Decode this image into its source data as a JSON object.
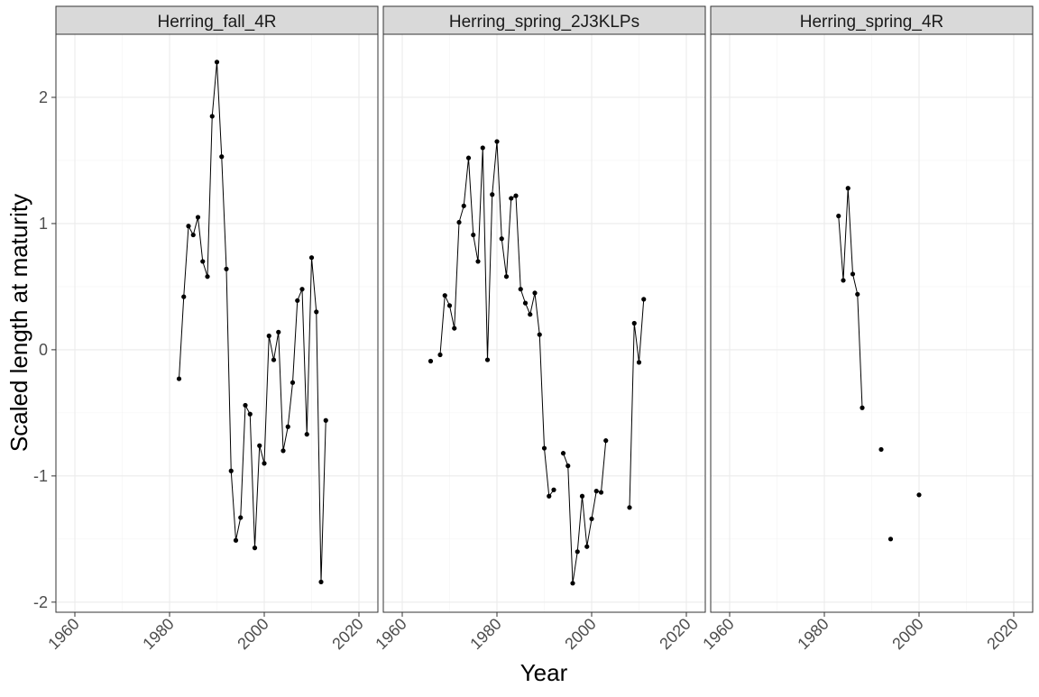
{
  "chart_data": {
    "type": "line",
    "xlabel": "Year",
    "ylabel": "Scaled length at maturity",
    "xlim": [
      1956,
      2024
    ],
    "ylim": [
      -2.08,
      2.5
    ],
    "x_ticks": [
      1960,
      1980,
      2000,
      2020
    ],
    "x_tick_labels": [
      "1960",
      "1980",
      "2000",
      "2020"
    ],
    "y_ticks": [
      -2,
      -1,
      0,
      1,
      2
    ],
    "y_tick_labels": [
      "-2",
      "-1",
      "0",
      "1",
      "2"
    ],
    "grid": true,
    "legend": "none",
    "panels": [
      {
        "title": "Herring_fall_4R",
        "segments": [
          [
            [
              1982,
              -0.23
            ],
            [
              1983,
              0.42
            ],
            [
              1984,
              0.98
            ],
            [
              1985,
              0.91
            ],
            [
              1986,
              1.05
            ],
            [
              1987,
              0.7
            ],
            [
              1988,
              0.58
            ],
            [
              1989,
              1.85
            ],
            [
              1990,
              2.28
            ],
            [
              1991,
              1.53
            ],
            [
              1992,
              0.64
            ],
            [
              1993,
              -0.96
            ],
            [
              1994,
              -1.51
            ],
            [
              1995,
              -1.33
            ],
            [
              1996,
              -0.44
            ],
            [
              1997,
              -0.51
            ],
            [
              1998,
              -1.57
            ],
            [
              1999,
              -0.76
            ],
            [
              2000,
              -0.9
            ],
            [
              2001,
              0.11
            ],
            [
              2002,
              -0.08
            ],
            [
              2003,
              0.14
            ],
            [
              2004,
              -0.8
            ],
            [
              2005,
              -0.61
            ],
            [
              2006,
              -0.26
            ],
            [
              2007,
              0.39
            ],
            [
              2008,
              0.48
            ],
            [
              2009,
              -0.67
            ],
            [
              2010,
              0.73
            ],
            [
              2011,
              0.3
            ],
            [
              2012,
              -1.84
            ],
            [
              2013,
              -0.56
            ]
          ]
        ]
      },
      {
        "title": "Herring_spring_2J3KLPs",
        "segments": [
          [
            [
              1966,
              -0.09
            ]
          ],
          [
            [
              1968,
              -0.04
            ],
            [
              1969,
              0.43
            ],
            [
              1970,
              0.35
            ],
            [
              1971,
              0.17
            ],
            [
              1972,
              1.01
            ],
            [
              1973,
              1.14
            ],
            [
              1974,
              1.52
            ],
            [
              1975,
              0.91
            ],
            [
              1976,
              0.7
            ],
            [
              1977,
              1.6
            ],
            [
              1978,
              -0.08
            ],
            [
              1979,
              1.23
            ],
            [
              1980,
              1.65
            ],
            [
              1981,
              0.88
            ],
            [
              1982,
              0.58
            ],
            [
              1983,
              1.2
            ],
            [
              1984,
              1.22
            ],
            [
              1985,
              0.48
            ],
            [
              1986,
              0.37
            ],
            [
              1987,
              0.28
            ],
            [
              1988,
              0.45
            ],
            [
              1989,
              0.12
            ],
            [
              1990,
              -0.78
            ],
            [
              1991,
              -1.16
            ],
            [
              1992,
              -1.11
            ]
          ],
          [
            [
              1994,
              -0.82
            ],
            [
              1995,
              -0.92
            ],
            [
              1996,
              -1.85
            ],
            [
              1997,
              -1.6
            ],
            [
              1998,
              -1.16
            ],
            [
              1999,
              -1.56
            ],
            [
              2000,
              -1.34
            ],
            [
              2001,
              -1.12
            ],
            [
              2002,
              -1.13
            ],
            [
              2003,
              -0.72
            ]
          ],
          [
            [
              2008,
              -1.25
            ],
            [
              2009,
              0.21
            ],
            [
              2010,
              -0.1
            ],
            [
              2011,
              0.4
            ]
          ]
        ]
      },
      {
        "title": "Herring_spring_4R",
        "segments": [
          [
            [
              1983,
              1.06
            ],
            [
              1984,
              0.55
            ],
            [
              1985,
              1.28
            ],
            [
              1986,
              0.6
            ],
            [
              1987,
              0.44
            ],
            [
              1988,
              -0.46
            ]
          ],
          [
            [
              1992,
              -0.79
            ]
          ],
          [
            [
              1994,
              -1.5
            ]
          ],
          [
            [
              2000,
              -1.15
            ]
          ]
        ]
      }
    ]
  }
}
